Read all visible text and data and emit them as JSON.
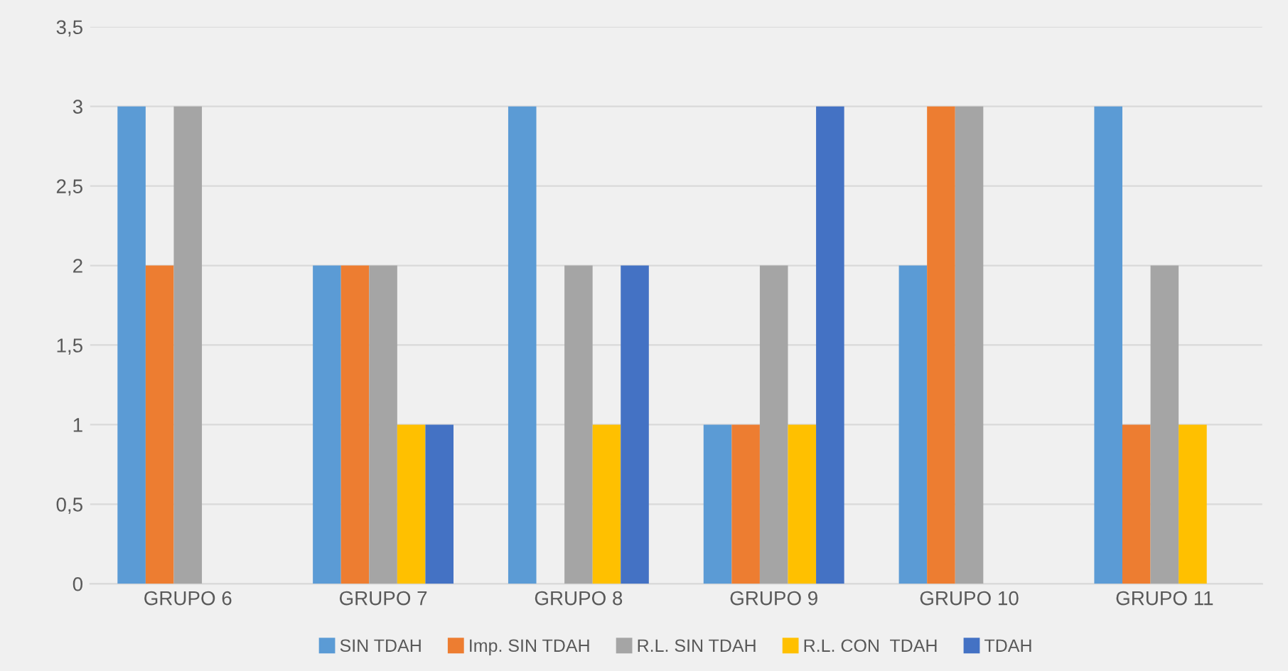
{
  "chart_data": {
    "type": "bar",
    "categories": [
      "GRUPO 6",
      "GRUPO 7",
      "GRUPO 8",
      "GRUPO 9",
      "GRUPO 10",
      "GRUPO 11"
    ],
    "series": [
      {
        "name": "SIN TDAH",
        "color": "#5b9bd5",
        "values": [
          3,
          2,
          3,
          1,
          2,
          3
        ]
      },
      {
        "name": "Imp. SIN TDAH",
        "color": "#ed7d31",
        "values": [
          2,
          2,
          0,
          1,
          3,
          1
        ]
      },
      {
        "name": "R.L. SIN TDAH",
        "color": "#a5a5a5",
        "values": [
          3,
          2,
          2,
          2,
          3,
          2
        ]
      },
      {
        "name": "R.L. CON  TDAH",
        "color": "#ffc000",
        "values": [
          0,
          1,
          1,
          1,
          0,
          1
        ]
      },
      {
        "name": "TDAH",
        "color": "#4472c4",
        "values": [
          0,
          1,
          2,
          3,
          0,
          0
        ]
      }
    ],
    "ylim": [
      0,
      3.5
    ],
    "yticks": [
      {
        "value": 0,
        "label": "0"
      },
      {
        "value": 0.5,
        "label": "0,5"
      },
      {
        "value": 1,
        "label": "1"
      },
      {
        "value": 1.5,
        "label": "1,5"
      },
      {
        "value": 2,
        "label": "2"
      },
      {
        "value": 2.5,
        "label": "2,5"
      },
      {
        "value": 3,
        "label": "3"
      },
      {
        "value": 3.5,
        "label": "3,5"
      }
    ],
    "grid": "y",
    "legend": "bottom"
  }
}
